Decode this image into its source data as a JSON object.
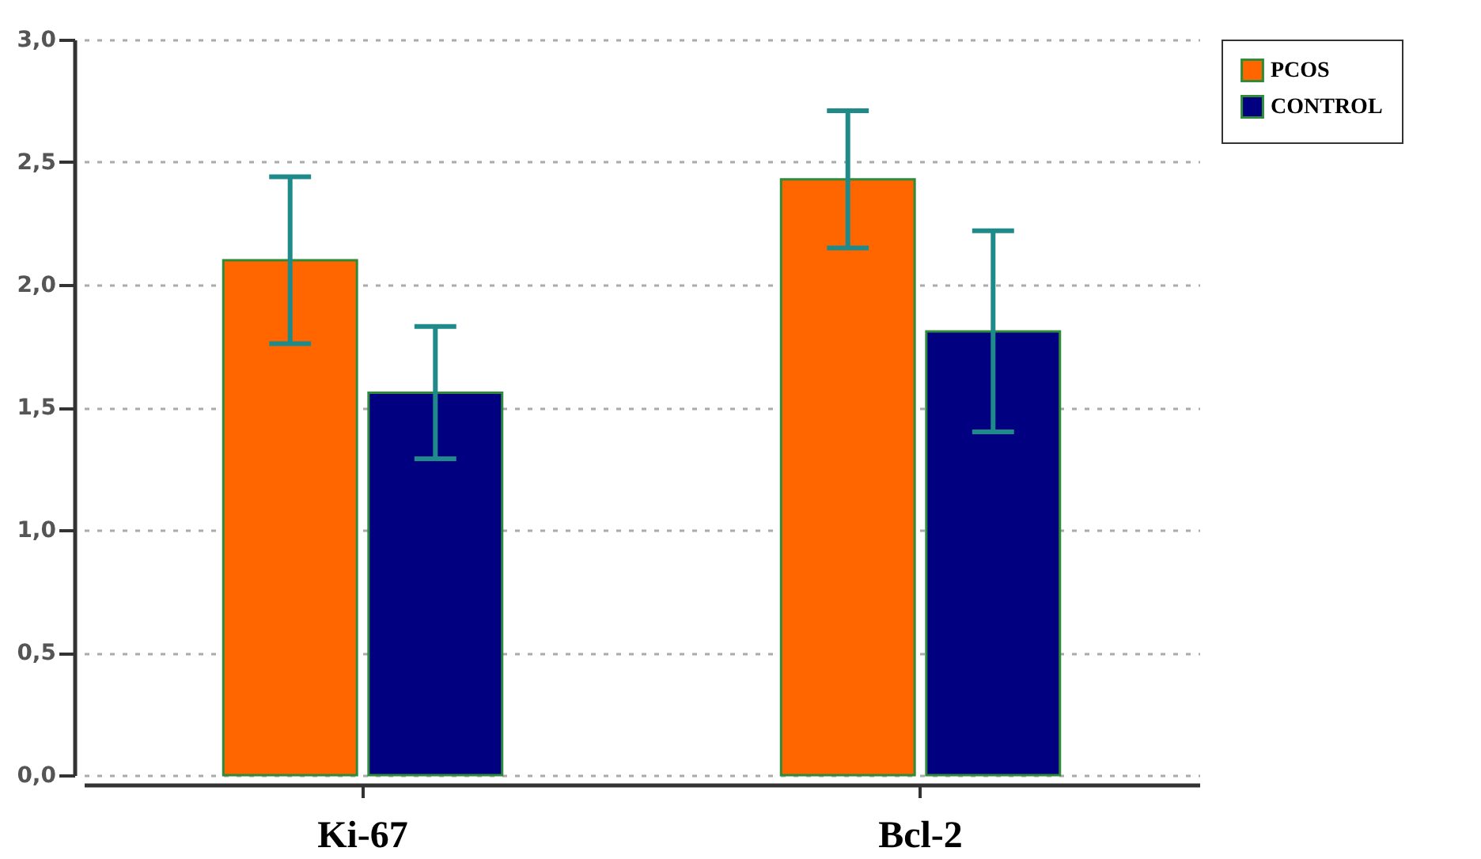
{
  "chart_data": {
    "type": "bar",
    "categories": [
      "Ki-67",
      "Bcl-2"
    ],
    "series": [
      {
        "name": "PCOS",
        "color": "#ff6600",
        "values": [
          2.1,
          2.43
        ],
        "errors": [
          0.34,
          0.28
        ]
      },
      {
        "name": "CONTROL",
        "color": "#000080",
        "values": [
          1.56,
          1.81
        ],
        "errors": [
          0.27,
          0.41
        ]
      }
    ],
    "ylim": [
      0,
      3
    ],
    "yticks": [
      {
        "value": 0,
        "label": "0,0"
      },
      {
        "value": 0.5,
        "label": "0,5"
      },
      {
        "value": 1,
        "label": "1,0"
      },
      {
        "value": 1.5,
        "label": "1,5"
      },
      {
        "value": 2,
        "label": "2,0"
      },
      {
        "value": 2.5,
        "label": "2,5"
      },
      {
        "value": 3,
        "label": "3,0"
      }
    ],
    "grid": "y",
    "legend": "right"
  }
}
